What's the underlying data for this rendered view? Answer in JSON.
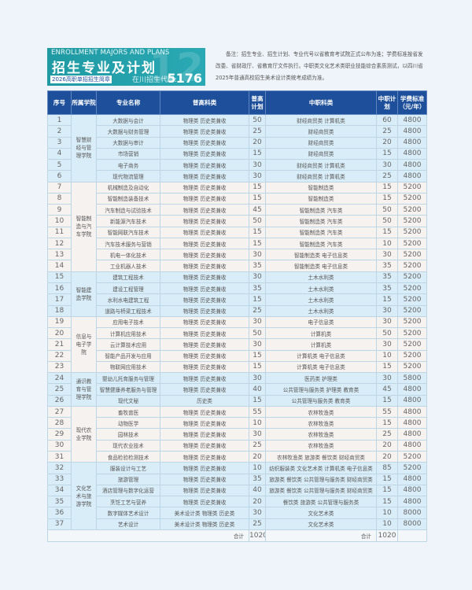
{
  "header": {
    "en_title": "ENROLLMENT MAJORS AND PLANS",
    "cn_title": "招生专业及计划",
    "subtitle": "2026高职单招招生简章",
    "code_label": "在川招生代码:",
    "code": "5176"
  },
  "note": "备注：招生专业、招生计划、专业代号以省教育考试院正式公布为准；学费标准按省发改委、省财政厅、省教育厅文件执行。中职类文化艺术类职业技能综合素质测试，以四川省2025年普通高校招生美术设计类统考成绩为准。",
  "table": {
    "columns": [
      "序号",
      "所属学院",
      "专业名称",
      "普高科类",
      "普高计划",
      "中职科类",
      "中职计划",
      "学费标准（元/年）"
    ],
    "groups": [
      {
        "college": "智慧财经与管理学院",
        "tint": "blue",
        "rows": [
          [
            "1",
            "大数据与会计",
            "物理类 历史类兼收",
            "50",
            "财经商贸类 计算机类",
            "60",
            "4800"
          ],
          [
            "2",
            "大数据与财务管理",
            "物理类 历史类兼收",
            "25",
            "财经商贸类",
            "25",
            "4800"
          ],
          [
            "3",
            "大数据与审计",
            "物理类 历史类兼收",
            "20",
            "财经商贸类",
            "20",
            "4800"
          ],
          [
            "4",
            "市场营销",
            "物理类 历史类兼收",
            "15",
            "财经商贸类",
            "15",
            "4800"
          ],
          [
            "5",
            "电子商务",
            "物理类 历史类兼收",
            "30",
            "财经商贸类 计算机类",
            "30",
            "4800"
          ],
          [
            "6",
            "现代物流管理",
            "物理类 历史类兼收",
            "30",
            "财经商贸类 计算机类",
            "25",
            "4800"
          ]
        ]
      },
      {
        "college": "智能制造与汽车学院",
        "tint": "cream",
        "rows": [
          [
            "7",
            "机械制造及自动化",
            "物理类 历史类兼收",
            "15",
            "智能制造类",
            "15",
            "5200"
          ],
          [
            "8",
            "智能制造装备技术",
            "物理类 历史类兼收",
            "15",
            "智能制造类",
            "15",
            "5200"
          ],
          [
            "9",
            "汽车制造与试验技术",
            "物理类 历史类兼收",
            "45",
            "智能制造类 汽车类",
            "50",
            "5200"
          ],
          [
            "10",
            "新能源汽车技术",
            "物理类 历史类兼收",
            "50",
            "智能制造类 汽车类",
            "50",
            "5200"
          ],
          [
            "11",
            "智能网联汽车技术",
            "物理类 历史类兼收",
            "15",
            "智能制造类 汽车类",
            "15",
            "5200"
          ],
          [
            "12",
            "汽车技术服务与营销",
            "物理类 历史类兼收",
            "15",
            "智能制造类 汽车类",
            "10",
            "5200"
          ],
          [
            "13",
            "机电一体化技术",
            "物理类 历史类兼收",
            "30",
            "智能制造类 电子信息类",
            "30",
            "5200"
          ],
          [
            "14",
            "工业机器人技术",
            "物理类 历史类兼收",
            "35",
            "智能制造类 电子信息类",
            "35",
            "5200"
          ]
        ]
      },
      {
        "college": "智能建造学院",
        "tint": "blue",
        "rows": [
          [
            "15",
            "建筑工程技术",
            "物理类 历史类兼收",
            "30",
            "土木水利类",
            "35",
            "5200"
          ],
          [
            "16",
            "建设工程管理",
            "物理类 历史类兼收",
            "35",
            "土木水利类",
            "35",
            "5200"
          ],
          [
            "17",
            "水利水电建筑工程",
            "物理类 历史类兼收",
            "15",
            "土木水利类",
            "15",
            "5200"
          ],
          [
            "18",
            "道路与桥梁工程技术",
            "物理类 历史类兼收",
            "25",
            "土木水利类",
            "30",
            "5200"
          ]
        ]
      },
      {
        "college": "信息与电子学院",
        "tint": "cream",
        "rows": [
          [
            "19",
            "应用电子技术",
            "物理类 历史类兼收",
            "30",
            "电子信息类",
            "30",
            "5200"
          ],
          [
            "20",
            "计算机应用技术",
            "物理类 历史类兼收",
            "50",
            "计算机类",
            "50",
            "5200"
          ],
          [
            "21",
            "云计算技术应用",
            "物理类 历史类兼收",
            "30",
            "计算机类",
            "30",
            "5200"
          ],
          [
            "22",
            "智能产品开发与应用",
            "物理类 历史类兼收",
            "15",
            "计算机类 电子信息类",
            "10",
            "5200"
          ],
          [
            "23",
            "物联网应用技术",
            "物理类 历史类兼收",
            "15",
            "计算机类 电子信息类",
            "15",
            "5200"
          ]
        ]
      },
      {
        "college": "通识教育与管理学院",
        "tint": "blue",
        "rows": [
          [
            "24",
            "婴幼儿托育服务与管理",
            "物理类 历史类兼收",
            "30",
            "医药类 护理类",
            "30",
            "5800"
          ],
          [
            "25",
            "智慧健康养老服务与管理",
            "物理类 历史类兼收",
            "40",
            "公共管理与服务类 护理类 教育类",
            "45",
            "4800"
          ],
          [
            "26",
            "现代文秘",
            "历史类",
            "15",
            "公共管理与服务类 教育类",
            "15",
            "4800"
          ]
        ]
      },
      {
        "college": "现代农业学院",
        "tint": "cream",
        "rows": [
          [
            "27",
            "畜牧兽医",
            "物理类 历史类兼收",
            "55",
            "农林牧渔类",
            "55",
            "4800"
          ],
          [
            "28",
            "动物医学",
            "物理类 历史类兼收",
            "10",
            "农林牧渔类",
            "15",
            "4800"
          ],
          [
            "29",
            "园林技术",
            "物理类 历史类兼收",
            "30",
            "农林牧渔类",
            "25",
            "4800"
          ],
          [
            "30",
            "现代农业技术",
            "物理类 历史类兼收",
            "25",
            "农林牧渔类",
            "20",
            "4800"
          ],
          [
            "31",
            "食品检验检测技术",
            "物理类 历史类兼收",
            "20",
            "农林牧渔类 旅游类 餐饮类 财经商贸类",
            "20",
            "5200"
          ]
        ]
      },
      {
        "college": "文化艺术与旅游学院",
        "tint": "blue",
        "rows": [
          [
            "32",
            "服装设计与工艺",
            "物理类 历史类兼收",
            "10",
            "纺织服装类 文化艺术类 计算机类 电子信息类",
            "85",
            "5200"
          ],
          [
            "33",
            "旅游管理",
            "物理类 历史类兼收",
            "35",
            "旅游类 餐饮类 公共管理与服务类 财经商贸类",
            "15",
            "4800"
          ],
          [
            "34",
            "酒店管理与数字化运营",
            "物理类 历史类兼收",
            "40",
            "旅游类 餐饮类 公共管理与服务类 财经商贸类",
            "15",
            "4800"
          ],
          [
            "35",
            "烹饪工艺与营养",
            "物理类 历史类兼收",
            "20",
            "餐饮类 旅游类 公共管理与服务类",
            "15",
            "4800"
          ],
          [
            "36",
            "数字媒体艺术设计",
            "美术设计类 物理类 历史类",
            "30",
            "文化艺术类",
            "10",
            "8000"
          ],
          [
            "37",
            "艺术设计",
            "美术设计类 物理类 历史类",
            "25",
            "文化艺术类",
            "10",
            "8000"
          ]
        ]
      }
    ],
    "total": {
      "label_gaozhong": "合计",
      "gaozhong_total": "1020",
      "label_zhongzhi": "合计",
      "zhongzhi_total": "1020"
    }
  },
  "colors": {
    "header": "#1d4f9a",
    "banner": "#2aa9b4",
    "row_blue": "#d9edf8",
    "row_cream": "#f6f2ef"
  }
}
